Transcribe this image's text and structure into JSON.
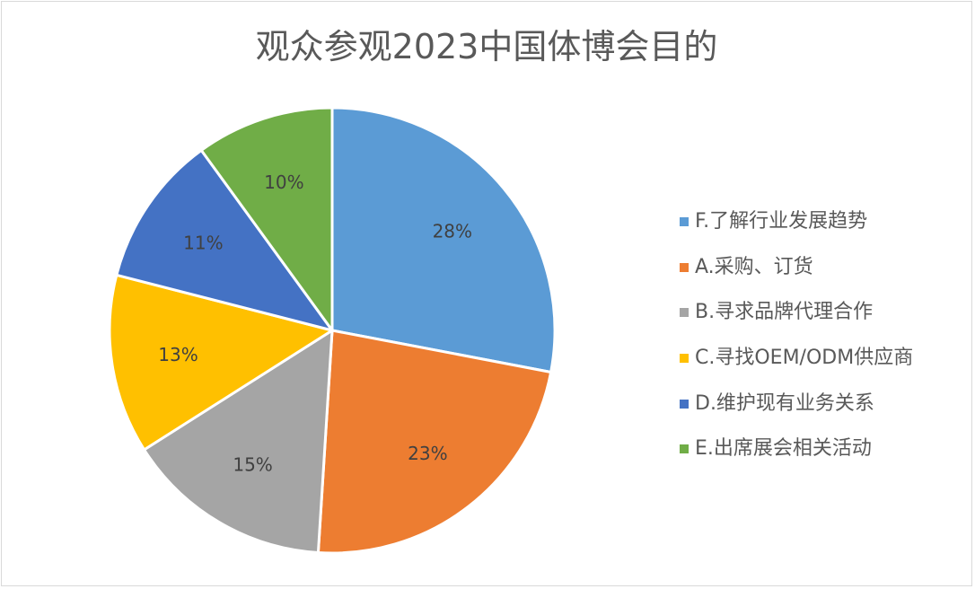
{
  "chart_data": {
    "type": "pie",
    "title": "观众参观2023中国体博会目的",
    "legend_position": "right",
    "slices": [
      {
        "label": "F.了解行业发展趋势",
        "value": 28,
        "display": "28%",
        "color": "#5b9bd5"
      },
      {
        "label": "A.采购、订货",
        "value": 23,
        "display": "23%",
        "color": "#ed7d31"
      },
      {
        "label": "B.寻求品牌代理合作",
        "value": 15,
        "display": "15%",
        "color": "#a5a5a5"
      },
      {
        "label": "C.寻找OEM/ODM供应商",
        "value": 13,
        "display": "13%",
        "color": "#ffc000"
      },
      {
        "label": "D.维护现有业务关系",
        "value": 11,
        "display": "11%",
        "color": "#4472c4"
      },
      {
        "label": "E.出席展会相关活动",
        "value": 10,
        "display": "10%",
        "color": "#70ad47"
      }
    ]
  }
}
